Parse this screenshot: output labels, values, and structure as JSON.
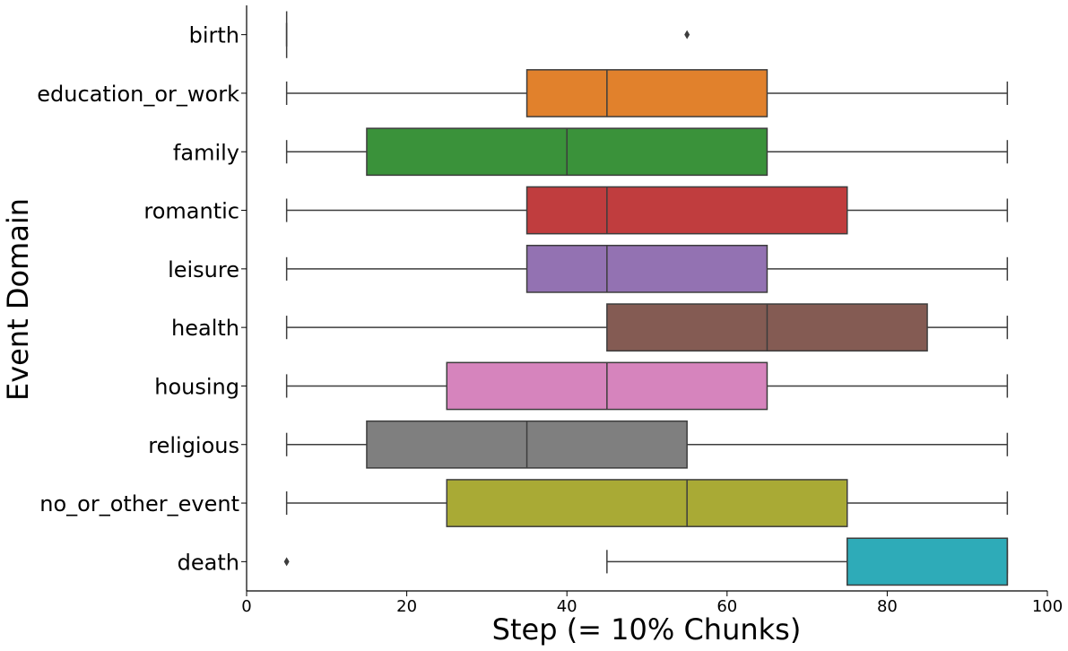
{
  "chart_data": {
    "type": "box",
    "orientation": "horizontal",
    "title": "",
    "xlabel": "Step (= 10% Chunks)",
    "ylabel": "Event Domain",
    "xlim": [
      0,
      100
    ],
    "x_ticks": [
      0,
      20,
      40,
      60,
      80,
      100
    ],
    "grid": false,
    "legend": "none",
    "categories": [
      "birth",
      "education_or_work",
      "family",
      "romantic",
      "leisure",
      "health",
      "housing",
      "religious",
      "no_or_other_event",
      "death"
    ],
    "boxes": [
      {
        "category": "birth",
        "color": "#1f77b4",
        "whisker_low": 5,
        "q1": 5,
        "median": 5,
        "q3": 5,
        "whisker_high": 5,
        "outliers": [
          55
        ]
      },
      {
        "category": "education_or_work",
        "color": "#e1812c",
        "whisker_low": 5,
        "q1": 35,
        "median": 45,
        "q3": 65,
        "whisker_high": 95,
        "outliers": []
      },
      {
        "category": "family",
        "color": "#3a923a",
        "whisker_low": 5,
        "q1": 15,
        "median": 40,
        "q3": 65,
        "whisker_high": 95,
        "outliers": []
      },
      {
        "category": "romantic",
        "color": "#c03d3e",
        "whisker_low": 5,
        "q1": 35,
        "median": 45,
        "q3": 75,
        "whisker_high": 95,
        "outliers": []
      },
      {
        "category": "leisure",
        "color": "#9372b2",
        "whisker_low": 5,
        "q1": 35,
        "median": 45,
        "q3": 65,
        "whisker_high": 95,
        "outliers": []
      },
      {
        "category": "health",
        "color": "#845b53",
        "whisker_low": 5,
        "q1": 45,
        "median": 65,
        "q3": 85,
        "whisker_high": 95,
        "outliers": []
      },
      {
        "category": "housing",
        "color": "#d684bd",
        "whisker_low": 5,
        "q1": 25,
        "median": 45,
        "q3": 65,
        "whisker_high": 95,
        "outliers": []
      },
      {
        "category": "religious",
        "color": "#7f7f7f",
        "whisker_low": 5,
        "q1": 15,
        "median": 35,
        "q3": 55,
        "whisker_high": 95,
        "outliers": []
      },
      {
        "category": "no_or_other_event",
        "color": "#a9aa35",
        "whisker_low": 5,
        "q1": 25,
        "median": 55,
        "q3": 75,
        "whisker_high": 95,
        "outliers": []
      },
      {
        "category": "death",
        "color": "#2eabb8",
        "whisker_low": 45,
        "q1": 75,
        "median": 95,
        "q3": 95,
        "whisker_high": 95,
        "outliers": [
          5
        ]
      }
    ],
    "line_color": "#3d3d3d"
  }
}
